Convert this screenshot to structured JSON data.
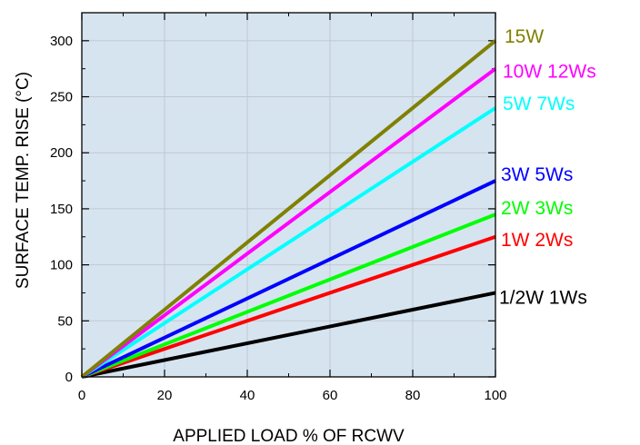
{
  "chart_data": {
    "type": "line",
    "title": "",
    "xlabel": "APPLIED LOAD % OF RCWV",
    "ylabel": "SURFACE TEMP. RISE (°C)",
    "xlim": [
      0,
      100
    ],
    "ylim": [
      0,
      325
    ],
    "x_ticks": [
      0,
      20,
      40,
      60,
      80,
      100
    ],
    "y_ticks": [
      0,
      50,
      100,
      150,
      200,
      250,
      300
    ],
    "grid": true,
    "plot_background": "#d6e4f0",
    "legend": "labels at right end of each line",
    "series": [
      {
        "name": "15W",
        "color": "#808000",
        "x": [
          0,
          100
        ],
        "y": [
          0,
          300
        ]
      },
      {
        "name": "10W 12Ws",
        "color": "#ff00ff",
        "x": [
          0,
          100
        ],
        "y": [
          0,
          275
        ]
      },
      {
        "name": "5W 7Ws",
        "color": "#00ffff",
        "x": [
          0,
          100
        ],
        "y": [
          0,
          240
        ]
      },
      {
        "name": "3W 5Ws",
        "color": "#0000ff",
        "x": [
          0,
          100
        ],
        "y": [
          0,
          175
        ]
      },
      {
        "name": "2W 3Ws",
        "color": "#00ff00",
        "x": [
          0,
          100
        ],
        "y": [
          0,
          145
        ]
      },
      {
        "name": "1W 2Ws",
        "color": "#ff0000",
        "x": [
          0,
          100
        ],
        "y": [
          0,
          125
        ]
      },
      {
        "name": "1/2W 1Ws",
        "color": "#000000",
        "x": [
          0,
          100
        ],
        "y": [
          0,
          75
        ]
      }
    ]
  }
}
